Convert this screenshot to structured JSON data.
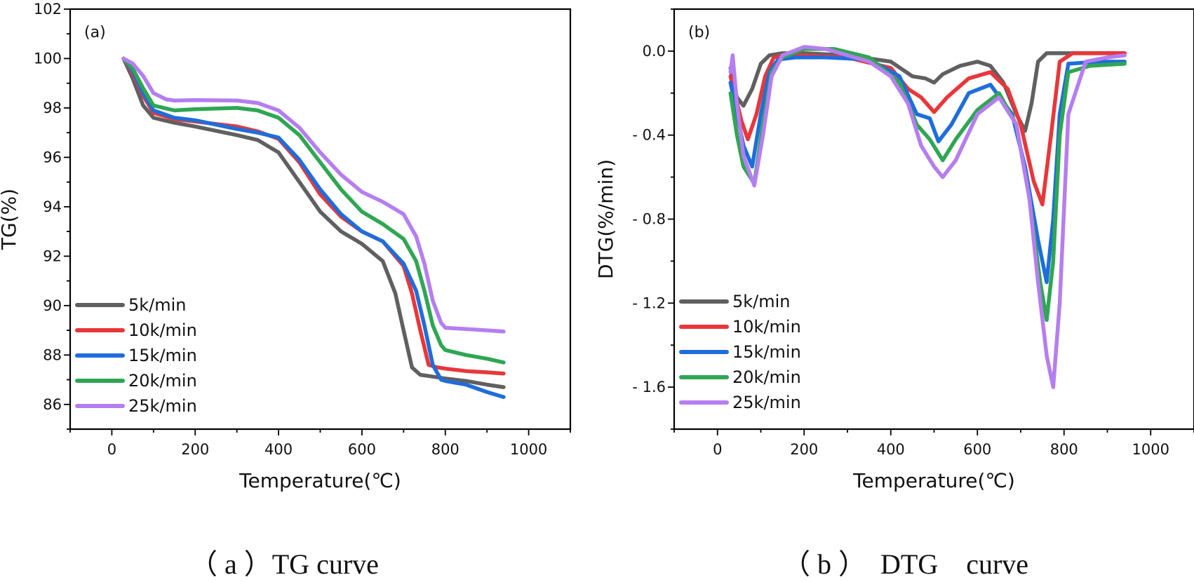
{
  "colors": {
    "5k/min": "#606060",
    "10k/min": "#e8373a",
    "15k/min": "#1f6ddc",
    "20k/min": "#2fa653",
    "25k/min": "#b57ef0"
  },
  "captions": {
    "a": "（ a ）TG curve",
    "b": "（ b ）  DTG    curve"
  },
  "chart_data": [
    {
      "type": "line",
      "panel_label": "(a)",
      "title": "",
      "xlabel": "Temperature(℃)",
      "ylabel": "TG(%)",
      "xlim": [
        -100,
        1100
      ],
      "ylim": [
        85,
        102
      ],
      "xticks": [
        0,
        200,
        400,
        600,
        800,
        1000
      ],
      "xtick_labels": [
        "0",
        "200",
        "400",
        "600",
        "800",
        "1000"
      ],
      "yticks": [
        86,
        88,
        90,
        92,
        94,
        96,
        98,
        100,
        102
      ],
      "ytick_labels": [
        "86",
        "88",
        "90",
        "92",
        "94",
        "96",
        "98",
        "100",
        "102"
      ],
      "legend": "bottom-left",
      "series": [
        {
          "name": "5k/min",
          "color": "#606060",
          "x": [
            28,
            50,
            75,
            100,
            150,
            200,
            300,
            350,
            400,
            450,
            500,
            550,
            600,
            650,
            680,
            700,
            720,
            740,
            760,
            800,
            850,
            900,
            940
          ],
          "y": [
            100,
            99.2,
            98.1,
            97.6,
            97.4,
            97.25,
            96.9,
            96.7,
            96.2,
            95.0,
            93.8,
            93.0,
            92.5,
            91.8,
            90.5,
            89.0,
            87.5,
            87.2,
            87.15,
            87.05,
            86.95,
            86.8,
            86.7
          ]
        },
        {
          "name": "10k/min",
          "color": "#e8373a",
          "x": [
            28,
            50,
            75,
            100,
            150,
            200,
            300,
            350,
            400,
            450,
            500,
            550,
            600,
            650,
            700,
            720,
            740,
            760,
            780,
            800,
            850,
            900,
            940
          ],
          "y": [
            100,
            99.4,
            98.5,
            97.8,
            97.55,
            97.45,
            97.25,
            97.05,
            96.75,
            95.8,
            94.5,
            93.6,
            93.0,
            92.6,
            91.6,
            90.5,
            89.0,
            87.6,
            87.5,
            87.45,
            87.35,
            87.3,
            87.25
          ]
        },
        {
          "name": "15k/min",
          "color": "#1f6ddc",
          "x": [
            28,
            50,
            75,
            100,
            150,
            200,
            300,
            350,
            400,
            450,
            500,
            550,
            600,
            650,
            700,
            730,
            750,
            770,
            790,
            800,
            850,
            900,
            940
          ],
          "y": [
            100,
            99.5,
            98.6,
            97.9,
            97.6,
            97.5,
            97.15,
            97.0,
            96.8,
            95.9,
            94.7,
            93.7,
            93.0,
            92.6,
            91.7,
            90.6,
            89.2,
            87.6,
            87.0,
            86.95,
            86.8,
            86.5,
            86.3
          ]
        },
        {
          "name": "20k/min",
          "color": "#2fa653",
          "x": [
            28,
            50,
            75,
            100,
            150,
            200,
            300,
            350,
            400,
            450,
            500,
            550,
            600,
            650,
            700,
            730,
            750,
            770,
            790,
            800,
            850,
            900,
            940
          ],
          "y": [
            100,
            99.6,
            98.8,
            98.1,
            97.9,
            97.95,
            98.0,
            97.9,
            97.6,
            96.9,
            95.8,
            94.7,
            93.8,
            93.3,
            92.7,
            91.8,
            90.6,
            89.2,
            88.4,
            88.2,
            88.0,
            87.85,
            87.7
          ]
        },
        {
          "name": "25k/min",
          "color": "#b57ef0",
          "x": [
            28,
            50,
            75,
            100,
            130,
            150,
            200,
            300,
            350,
            400,
            450,
            500,
            550,
            600,
            650,
            700,
            730,
            750,
            770,
            790,
            800,
            850,
            900,
            940
          ],
          "y": [
            100,
            99.8,
            99.3,
            98.6,
            98.35,
            98.3,
            98.32,
            98.3,
            98.2,
            97.9,
            97.2,
            96.2,
            95.3,
            94.6,
            94.2,
            93.7,
            92.8,
            91.7,
            90.2,
            89.3,
            89.1,
            89.05,
            89.0,
            88.95
          ]
        }
      ]
    },
    {
      "type": "line",
      "panel_label": "(b)",
      "title": "",
      "xlabel": "Temperature(℃)",
      "ylabel": "DTG(%/min)",
      "xlim": [
        -100,
        1100
      ],
      "ylim": [
        -1.8,
        0.2
      ],
      "xticks": [
        0,
        200,
        400,
        600,
        800,
        1000
      ],
      "xtick_labels": [
        "0",
        "200",
        "400",
        "600",
        "800",
        "1000"
      ],
      "yticks": [
        0.0,
        -0.4,
        -0.8,
        -1.2,
        -1.6
      ],
      "ytick_labels": [
        "0.0",
        "- 0.4",
        "- 0.8",
        "- 1.2",
        "- 1.6"
      ],
      "legend": "bottom-left",
      "series": [
        {
          "name": "5k/min",
          "color": "#606060",
          "x": [
            30,
            35,
            45,
            60,
            80,
            100,
            120,
            150,
            200,
            300,
            400,
            450,
            480,
            500,
            520,
            560,
            600,
            630,
            660,
            690,
            710,
            725,
            740,
            760,
            800,
            900,
            940
          ],
          "y": [
            -0.08,
            -0.15,
            -0.22,
            -0.26,
            -0.18,
            -0.06,
            -0.02,
            -0.01,
            -0.01,
            -0.02,
            -0.05,
            -0.12,
            -0.13,
            -0.15,
            -0.11,
            -0.07,
            -0.05,
            -0.07,
            -0.15,
            -0.3,
            -0.38,
            -0.25,
            -0.05,
            -0.01,
            -0.01,
            -0.01,
            -0.01
          ]
        },
        {
          "name": "10k/min",
          "color": "#e8373a",
          "x": [
            30,
            40,
            55,
            70,
            90,
            110,
            130,
            170,
            200,
            300,
            400,
            440,
            470,
            500,
            530,
            580,
            630,
            670,
            700,
            730,
            750,
            770,
            790,
            820,
            900,
            940
          ],
          "y": [
            -0.12,
            -0.2,
            -0.33,
            -0.42,
            -0.3,
            -0.12,
            -0.03,
            -0.02,
            -0.02,
            -0.03,
            -0.08,
            -0.18,
            -0.22,
            -0.29,
            -0.22,
            -0.13,
            -0.1,
            -0.18,
            -0.35,
            -0.62,
            -0.73,
            -0.4,
            -0.05,
            -0.01,
            -0.01,
            -0.01
          ]
        },
        {
          "name": "15k/min",
          "color": "#1f6ddc",
          "x": [
            30,
            45,
            60,
            80,
            100,
            120,
            140,
            180,
            250,
            350,
            420,
            460,
            490,
            510,
            540,
            580,
            630,
            680,
            710,
            740,
            760,
            775,
            790,
            810,
            880,
            940
          ],
          "y": [
            -0.15,
            -0.3,
            -0.45,
            -0.55,
            -0.3,
            -0.1,
            -0.04,
            -0.03,
            -0.03,
            -0.04,
            -0.12,
            -0.3,
            -0.32,
            -0.43,
            -0.35,
            -0.2,
            -0.16,
            -0.3,
            -0.55,
            -0.9,
            -1.1,
            -0.8,
            -0.3,
            -0.06,
            -0.05,
            -0.05
          ]
        },
        {
          "name": "20k/min",
          "color": "#2fa653",
          "x": [
            30,
            45,
            60,
            85,
            105,
            125,
            150,
            200,
            270,
            350,
            420,
            460,
            490,
            520,
            550,
            600,
            650,
            690,
            720,
            745,
            760,
            775,
            790,
            810,
            860,
            940
          ],
          "y": [
            -0.2,
            -0.4,
            -0.55,
            -0.63,
            -0.35,
            -0.1,
            -0.03,
            0.01,
            0.01,
            -0.03,
            -0.15,
            -0.35,
            -0.42,
            -0.52,
            -0.42,
            -0.28,
            -0.2,
            -0.35,
            -0.7,
            -1.1,
            -1.28,
            -1.0,
            -0.4,
            -0.1,
            -0.07,
            -0.06
          ]
        },
        {
          "name": "25k/min",
          "color": "#b57ef0",
          "x": [
            30,
            35,
            45,
            60,
            85,
            105,
            125,
            150,
            200,
            250,
            300,
            350,
            400,
            440,
            470,
            500,
            520,
            550,
            600,
            650,
            690,
            720,
            740,
            760,
            775,
            790,
            810,
            850,
            900,
            940
          ],
          "y": [
            -0.1,
            -0.02,
            -0.25,
            -0.5,
            -0.64,
            -0.4,
            -0.12,
            -0.02,
            0.02,
            0.01,
            -0.02,
            -0.05,
            -0.12,
            -0.25,
            -0.45,
            -0.55,
            -0.6,
            -0.52,
            -0.3,
            -0.22,
            -0.35,
            -0.7,
            -1.1,
            -1.45,
            -1.6,
            -1.2,
            -0.3,
            -0.05,
            -0.03,
            -0.02
          ]
        }
      ]
    }
  ]
}
